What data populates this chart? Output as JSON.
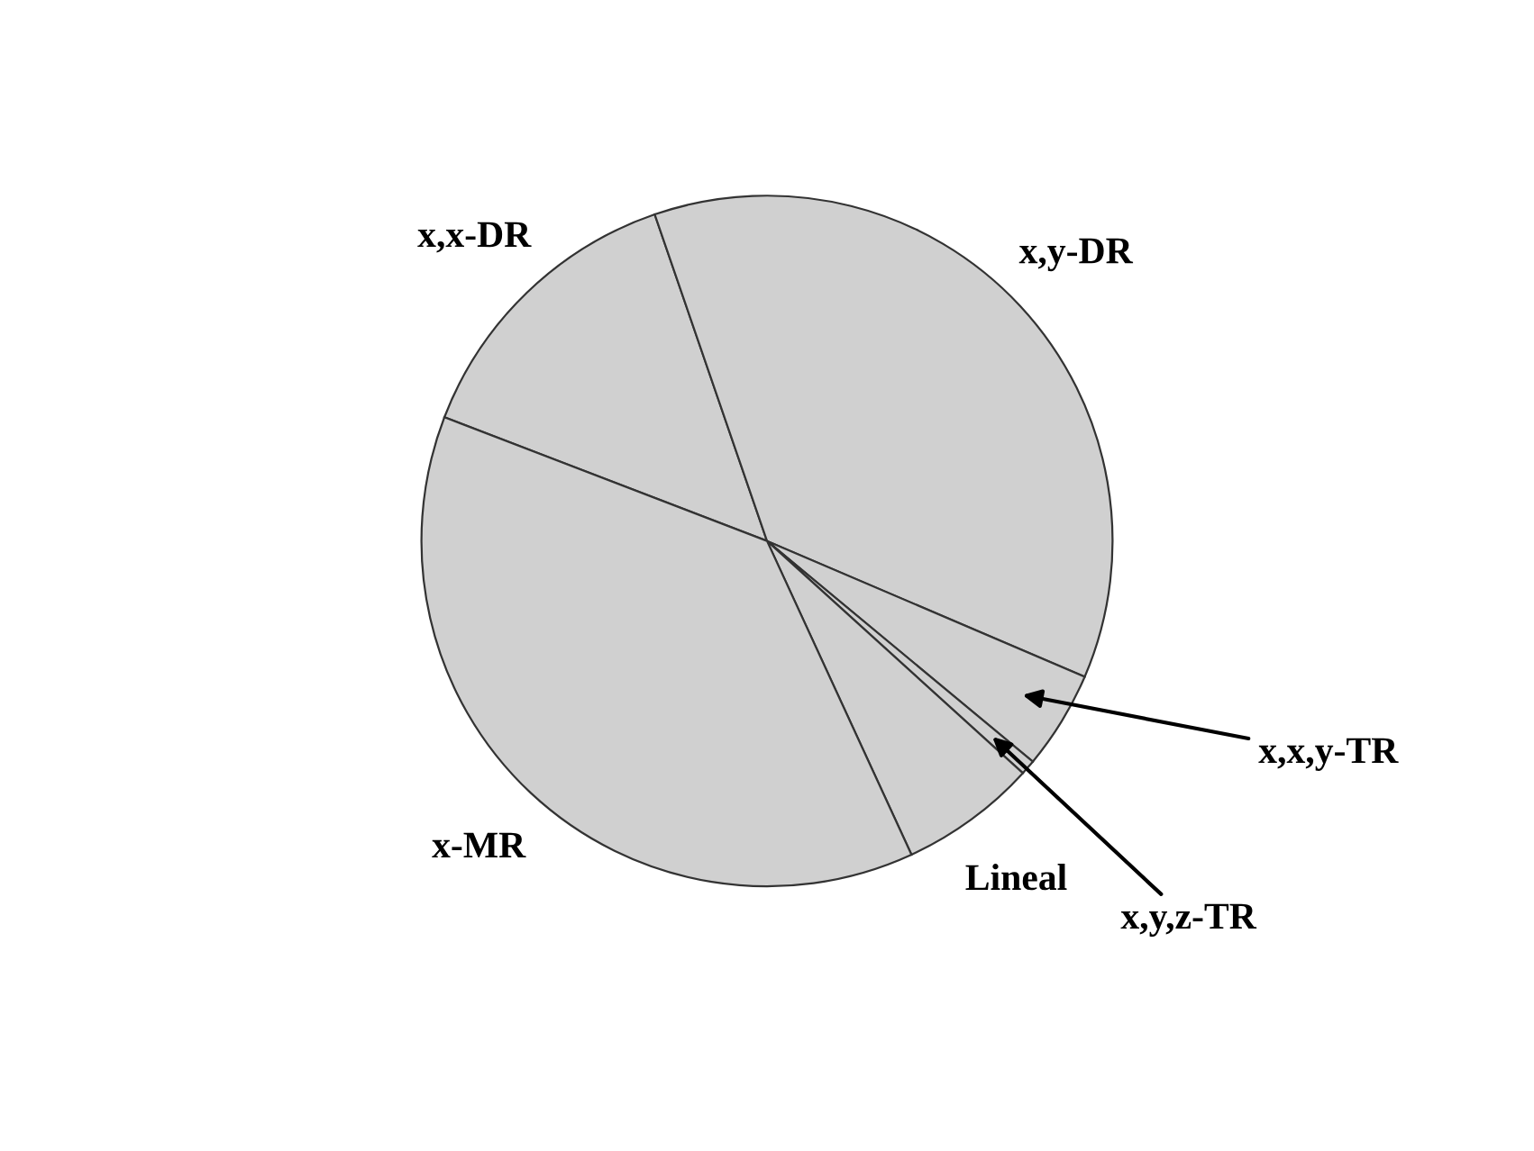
{
  "chart_data": {
    "type": "pie",
    "categories": [
      "x,x-DR",
      "x,y-DR",
      "x,x,y-TR",
      "x,y,z-TR",
      "Lineal",
      "x-MR"
    ],
    "values": [
      13.9,
      36.7,
      4.6,
      0.7,
      6.4,
      37.7
    ],
    "colors": [
      "#d0d0d0",
      "#d0d0d0",
      "#d0d0d0",
      "#d0d0d0",
      "#d0d0d0",
      "#d0d0d0"
    ]
  }
}
